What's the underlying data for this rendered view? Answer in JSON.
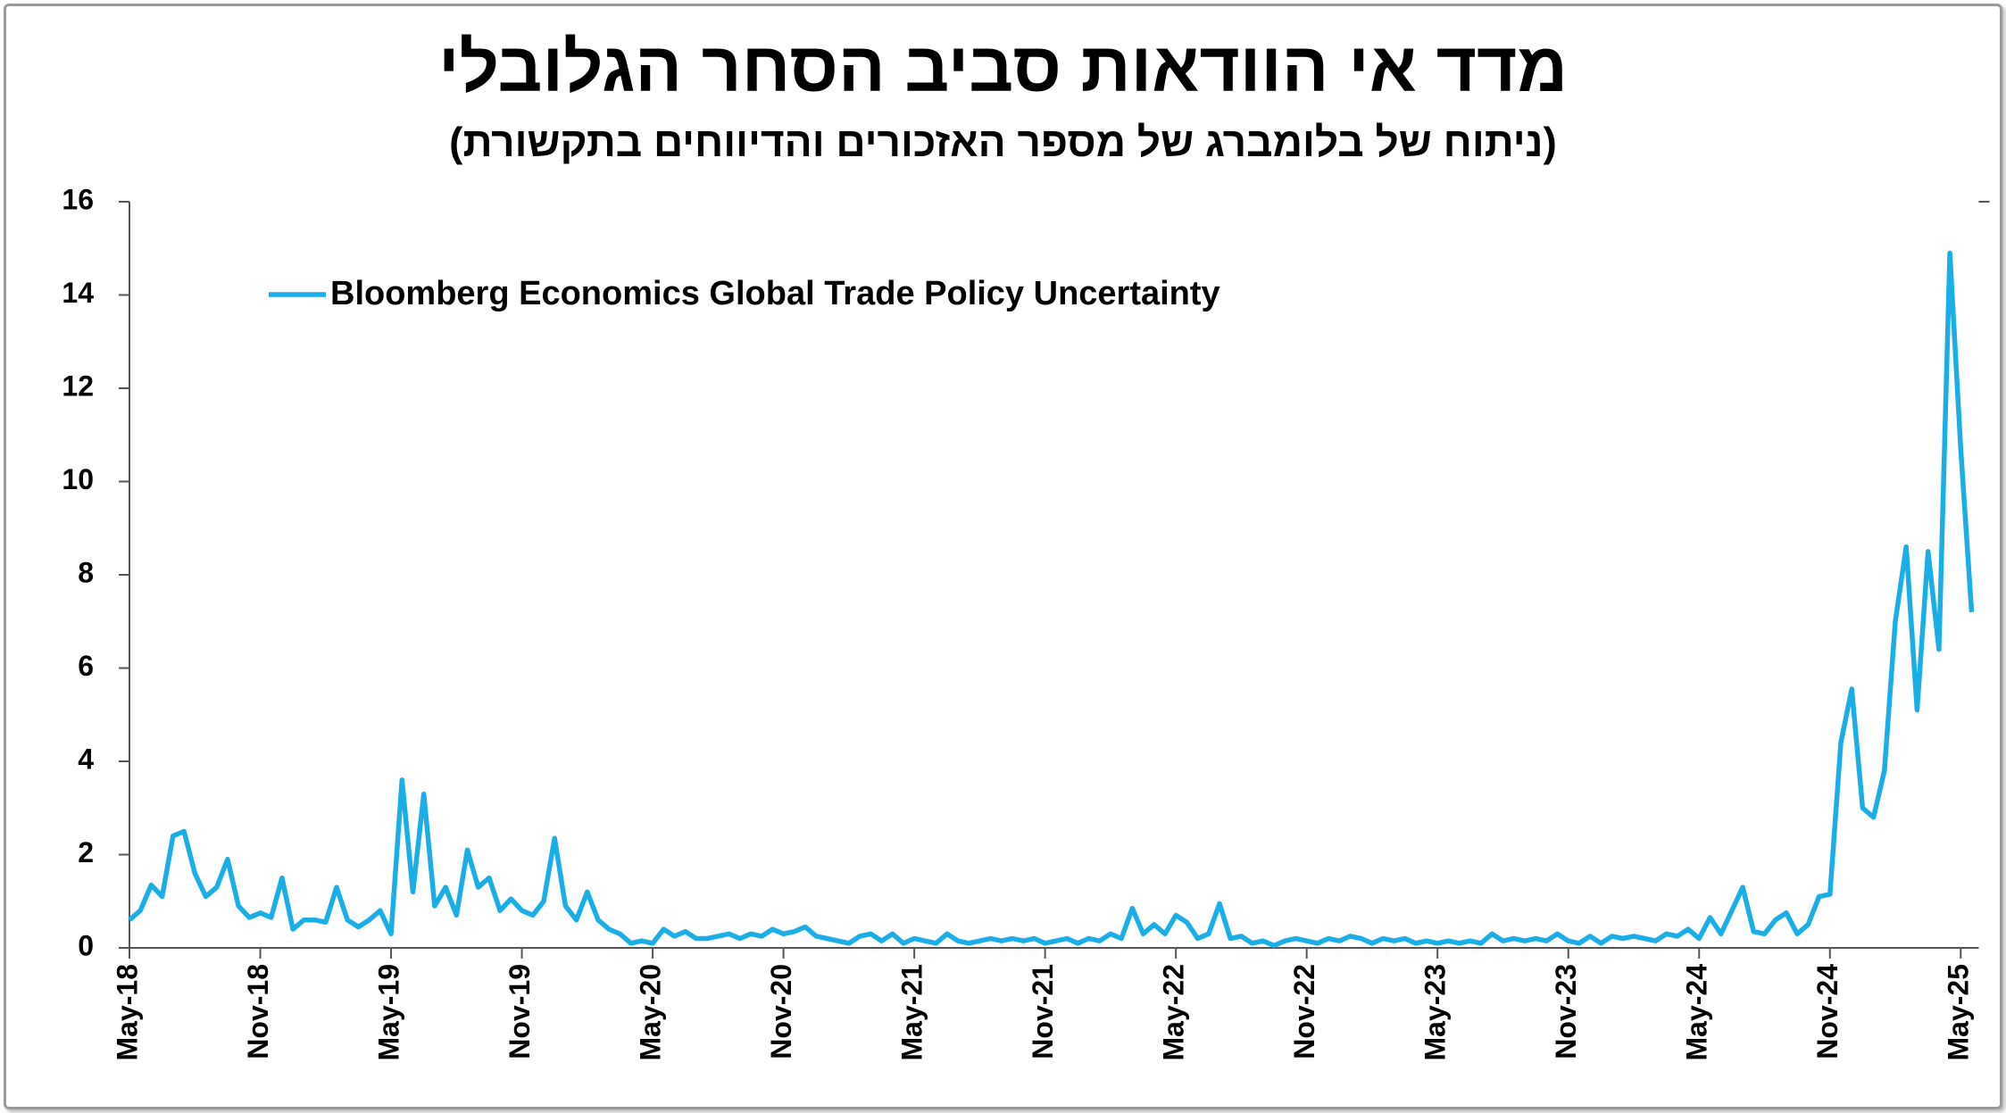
{
  "chart_data": {
    "type": "line",
    "title": "מדד אי הוודאות סביב הסחר הגלובלי",
    "subtitle": "(ניתוח של בלומברג של מספר האזכורים והדיווחים בתקשורת)",
    "categories": [
      "May-18",
      null,
      null,
      null,
      null,
      null,
      null,
      null,
      null,
      null,
      null,
      null,
      "Nov-18",
      null,
      null,
      null,
      null,
      null,
      null,
      null,
      null,
      null,
      null,
      null,
      "May-19",
      null,
      null,
      null,
      null,
      null,
      null,
      null,
      null,
      null,
      null,
      null,
      "Nov-19",
      null,
      null,
      null,
      null,
      null,
      null,
      null,
      null,
      null,
      null,
      null,
      "May-20",
      null,
      null,
      null,
      null,
      null,
      null,
      null,
      null,
      null,
      null,
      null,
      "Nov-20",
      null,
      null,
      null,
      null,
      null,
      null,
      null,
      null,
      null,
      null,
      null,
      "May-21",
      null,
      null,
      null,
      null,
      null,
      null,
      null,
      null,
      null,
      null,
      null,
      "Nov-21",
      null,
      null,
      null,
      null,
      null,
      null,
      null,
      null,
      null,
      null,
      null,
      "May-22",
      null,
      null,
      null,
      null,
      null,
      null,
      null,
      null,
      null,
      null,
      null,
      "Nov-22",
      null,
      null,
      null,
      null,
      null,
      null,
      null,
      null,
      null,
      null,
      null,
      "May-23",
      null,
      null,
      null,
      null,
      null,
      null,
      null,
      null,
      null,
      null,
      null,
      "Nov-23",
      null,
      null,
      null,
      null,
      null,
      null,
      null,
      null,
      null,
      null,
      null,
      "May-24",
      null,
      null,
      null,
      null,
      null,
      null,
      null,
      null,
      null,
      null,
      null,
      "Nov-24",
      null,
      null,
      null,
      null,
      null,
      null,
      null,
      null,
      null,
      null,
      null,
      "May-25",
      null
    ],
    "series": [
      {
        "name": "Bloomberg Economics Global Trade Policy Uncertainty",
        "color": "#1aaee8",
        "values": [
          0.6,
          0.8,
          1.35,
          1.1,
          2.4,
          2.5,
          1.6,
          1.1,
          1.3,
          1.9,
          0.9,
          0.65,
          0.75,
          0.65,
          1.5,
          0.4,
          0.6,
          0.6,
          0.55,
          1.3,
          0.6,
          0.45,
          0.6,
          0.8,
          0.3,
          3.6,
          1.2,
          3.3,
          0.9,
          1.3,
          0.7,
          2.1,
          1.3,
          1.5,
          0.8,
          1.05,
          0.8,
          0.7,
          1.0,
          2.35,
          0.9,
          0.6,
          1.2,
          0.6,
          0.4,
          0.3,
          0.1,
          0.15,
          0.1,
          0.4,
          0.25,
          0.35,
          0.2,
          0.2,
          0.25,
          0.3,
          0.2,
          0.3,
          0.25,
          0.4,
          0.3,
          0.35,
          0.45,
          0.25,
          0.2,
          0.15,
          0.1,
          0.25,
          0.3,
          0.15,
          0.3,
          0.1,
          0.2,
          0.15,
          0.1,
          0.3,
          0.15,
          0.1,
          0.15,
          0.2,
          0.15,
          0.2,
          0.15,
          0.2,
          0.1,
          0.15,
          0.2,
          0.1,
          0.2,
          0.15,
          0.3,
          0.2,
          0.85,
          0.3,
          0.5,
          0.3,
          0.7,
          0.55,
          0.2,
          0.3,
          0.95,
          0.2,
          0.25,
          0.1,
          0.15,
          0.05,
          0.15,
          0.2,
          0.15,
          0.1,
          0.2,
          0.15,
          0.25,
          0.2,
          0.1,
          0.2,
          0.15,
          0.2,
          0.1,
          0.15,
          0.1,
          0.15,
          0.1,
          0.15,
          0.1,
          0.3,
          0.15,
          0.2,
          0.15,
          0.2,
          0.15,
          0.3,
          0.15,
          0.1,
          0.25,
          0.1,
          0.25,
          0.2,
          0.25,
          0.2,
          0.15,
          0.3,
          0.25,
          0.4,
          0.2,
          0.65,
          0.3,
          0.8,
          1.3,
          0.35,
          0.3,
          0.6,
          0.75,
          0.3,
          0.5,
          1.1,
          1.15,
          4.4,
          5.55,
          3.0,
          2.8,
          3.8,
          7.0,
          8.6,
          5.1,
          8.5,
          6.4,
          14.9,
          10.7,
          7.2
        ]
      }
    ],
    "ylim": [
      0,
      16
    ],
    "yticks": [
      0,
      2,
      4,
      6,
      8,
      10,
      12,
      14,
      16
    ]
  }
}
